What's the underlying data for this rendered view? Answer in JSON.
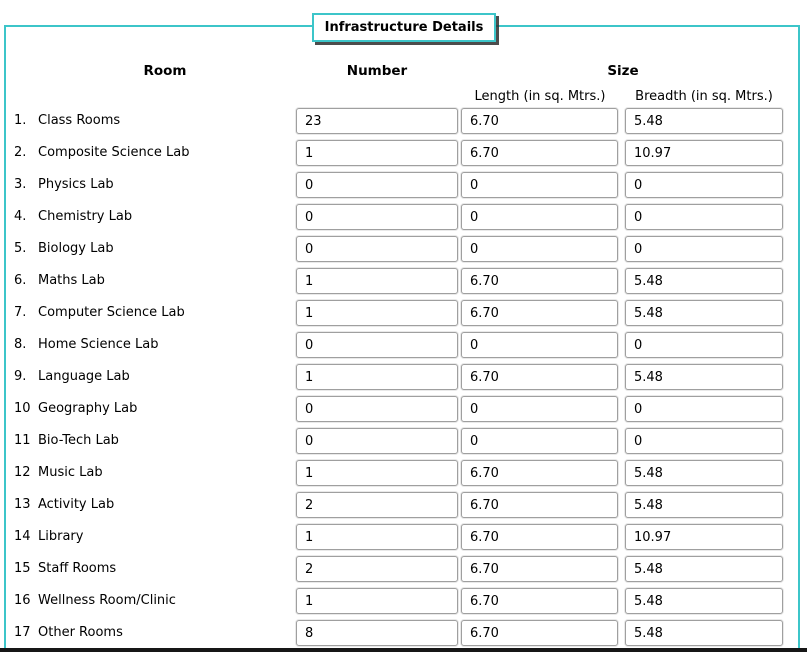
{
  "title": "Infrastructure Details",
  "columns": {
    "room": "Room",
    "number": "Number",
    "size": "Size",
    "length": "Length (in sq. Mtrs.)",
    "breadth": "Breadth (in sq. Mtrs.)"
  },
  "rows": [
    {
      "num": "1.",
      "name": "Class Rooms",
      "number": "23",
      "length": "6.70",
      "breadth": "5.48"
    },
    {
      "num": "2.",
      "name": "Composite Science Lab",
      "number": "1",
      "length": "6.70",
      "breadth": "10.97"
    },
    {
      "num": "3.",
      "name": "Physics Lab",
      "number": "0",
      "length": "0",
      "breadth": "0"
    },
    {
      "num": "4.",
      "name": "Chemistry Lab",
      "number": "0",
      "length": "0",
      "breadth": "0"
    },
    {
      "num": "5.",
      "name": "Biology Lab",
      "number": "0",
      "length": "0",
      "breadth": "0"
    },
    {
      "num": "6.",
      "name": "Maths Lab",
      "number": "1",
      "length": "6.70",
      "breadth": "5.48"
    },
    {
      "num": "7.",
      "name": "Computer Science Lab",
      "number": "1",
      "length": "6.70",
      "breadth": "5.48"
    },
    {
      "num": "8.",
      "name": "Home Science Lab",
      "number": "0",
      "length": "0",
      "breadth": "0"
    },
    {
      "num": "9.",
      "name": "Language Lab",
      "number": "1",
      "length": "6.70",
      "breadth": "5.48"
    },
    {
      "num": "10",
      "name": "Geography Lab",
      "number": "0",
      "length": "0",
      "breadth": "0"
    },
    {
      "num": "11",
      "name": "Bio-Tech Lab",
      "number": "0",
      "length": "0",
      "breadth": "0"
    },
    {
      "num": "12",
      "name": "Music Lab",
      "number": "1",
      "length": "6.70",
      "breadth": "5.48"
    },
    {
      "num": "13",
      "name": "Activity Lab",
      "number": "2",
      "length": "6.70",
      "breadth": "5.48"
    },
    {
      "num": "14",
      "name": "Library",
      "number": "1",
      "length": "6.70",
      "breadth": "10.97"
    },
    {
      "num": "15",
      "name": "Staff Rooms",
      "number": "2",
      "length": "6.70",
      "breadth": "5.48"
    },
    {
      "num": "16",
      "name": "Wellness Room/Clinic",
      "number": "1",
      "length": "6.70",
      "breadth": "5.48"
    },
    {
      "num": "17",
      "name": "Other Rooms",
      "number": "8",
      "length": "6.70",
      "breadth": "5.48"
    }
  ],
  "colors": {
    "accent_teal": "#3cc5c9",
    "bottom_bar": "#161616"
  }
}
